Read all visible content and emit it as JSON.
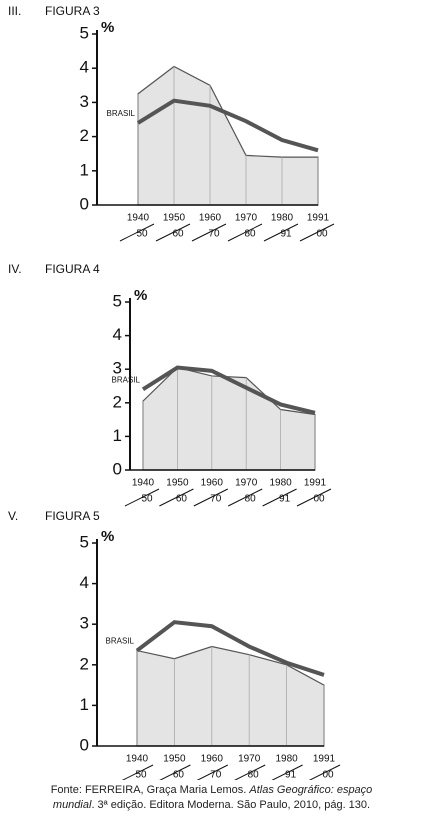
{
  "chart_data": [
    {
      "type": "area",
      "label": "III.",
      "title": "FIGURA 3",
      "y_label": "%",
      "categories": [
        [
          "1940",
          "50"
        ],
        [
          "1950",
          "60"
        ],
        [
          "1960",
          "70"
        ],
        [
          "1970",
          "80"
        ],
        [
          "1980",
          "91"
        ],
        [
          "1991",
          "00"
        ]
      ],
      "series": [
        {
          "color": "#e4e4e4",
          "values": [
            3.25,
            4.05,
            3.5,
            1.45,
            1.4,
            1.4
          ]
        },
        {
          "name": "BRASIL",
          "color": "#555555",
          "values": [
            2.4,
            3.05,
            2.9,
            2.45,
            1.9,
            1.6
          ]
        }
      ],
      "ylim": [
        0,
        5
      ],
      "yticks": [
        0,
        1,
        2,
        3,
        4,
        5
      ]
    },
    {
      "type": "area",
      "label": "IV.",
      "title": "FIGURA 4",
      "y_label": "%",
      "categories": [
        [
          "1940",
          "50"
        ],
        [
          "1950",
          "60"
        ],
        [
          "1960",
          "70"
        ],
        [
          "1970",
          "80"
        ],
        [
          "1980",
          "91"
        ],
        [
          "1991",
          "00"
        ]
      ],
      "series": [
        {
          "color": "#e4e4e4",
          "values": [
            2.05,
            3.05,
            2.8,
            2.75,
            1.8,
            1.65
          ]
        },
        {
          "name": "BRASIL",
          "color": "#555555",
          "values": [
            2.4,
            3.05,
            2.95,
            2.45,
            1.95,
            1.7
          ]
        }
      ],
      "ylim": [
        0,
        5
      ],
      "yticks": [
        0,
        1,
        2,
        3,
        4,
        5
      ]
    },
    {
      "type": "area",
      "label": "V.",
      "title": "FIGURA 5",
      "y_label": "%",
      "categories": [
        [
          "1940",
          "50"
        ],
        [
          "1950",
          "60"
        ],
        [
          "1960",
          "70"
        ],
        [
          "1970",
          "80"
        ],
        [
          "1980",
          "91"
        ],
        [
          "1991",
          "00"
        ]
      ],
      "series": [
        {
          "color": "#e4e4e4",
          "values": [
            2.35,
            2.15,
            2.45,
            2.25,
            2.0,
            1.5
          ]
        },
        {
          "name": "BRASIL",
          "color": "#555555",
          "values": [
            2.35,
            3.05,
            2.95,
            2.45,
            2.05,
            1.75
          ]
        }
      ],
      "ylim": [
        0,
        5
      ],
      "yticks": [
        0,
        1,
        2,
        3,
        4,
        5
      ]
    }
  ],
  "source": [
    "Fonte: FERREIRA, Graça Maria Lemos.",
    "Atlas Geográfico: espaço",
    "mundial",
    ". 3ª edição. Editora Moderna. São Paulo, 2010, pág. 130."
  ]
}
